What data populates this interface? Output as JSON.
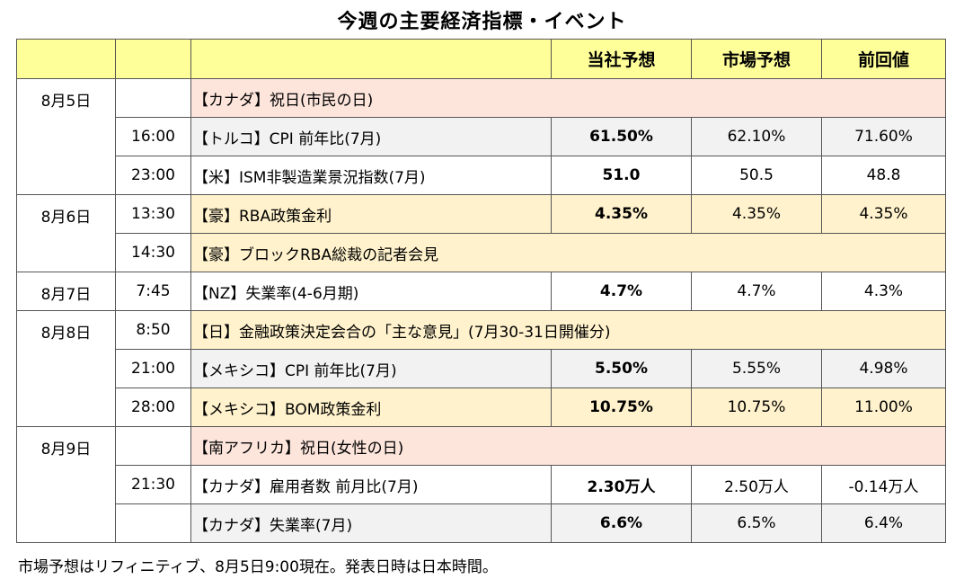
{
  "title": "今週の主要経済指標・イベント",
  "headers": [
    "",
    "",
    "",
    "当社予想",
    "市場予想",
    "前回値"
  ],
  "groups": [
    {
      "date": "8月5日",
      "rows": [
        {
          "time": "",
          "event": "【カナダ】祝日(市民の日)",
          "own": "",
          "market": "",
          "prev": "",
          "span": true,
          "color": "pink"
        },
        {
          "time": "16:00",
          "event": "【トルコ】CPI 前年比(7月)",
          "own": "61.50%",
          "market": "62.10%",
          "prev": "71.60%",
          "span": false,
          "color": "gray"
        },
        {
          "time": "23:00",
          "event": "【米】ISM非製造業景況指数(7月)",
          "own": "51.0",
          "market": "50.5",
          "prev": "48.8",
          "span": false,
          "color": "white"
        }
      ]
    },
    {
      "date": "8月6日",
      "rows": [
        {
          "time": "13:30",
          "event": "【豪】RBA政策金利",
          "own": "4.35%",
          "market": "4.35%",
          "prev": "4.35%",
          "span": false,
          "color": "yellow"
        },
        {
          "time": "14:30",
          "event": "【豪】ブロックRBA総裁の記者会見",
          "own": "",
          "market": "",
          "prev": "",
          "span": true,
          "color": "yellow"
        }
      ]
    },
    {
      "date": "8月7日",
      "rows": [
        {
          "time": "7:45",
          "event": "【NZ】失業率(4-6月期)",
          "own": "4.7%",
          "market": "4.7%",
          "prev": "4.3%",
          "span": false,
          "color": "white"
        }
      ]
    },
    {
      "date": "8月8日",
      "rows": [
        {
          "time": "8:50",
          "event": "【日】金融政策決定会合の「主な意見」(7月30-31日開催分)",
          "own": "",
          "market": "",
          "prev": "",
          "span": true,
          "color": "yellow"
        },
        {
          "time": "21:00",
          "event": "【メキシコ】CPI 前年比(7月)",
          "own": "5.50%",
          "market": "5.55%",
          "prev": "4.98%",
          "span": false,
          "color": "gray"
        },
        {
          "time": "28:00",
          "event": "【メキシコ】BOM政策金利",
          "own": "10.75%",
          "market": "10.75%",
          "prev": "11.00%",
          "span": false,
          "color": "yellow"
        }
      ]
    },
    {
      "date": "8月9日",
      "rows": [
        {
          "time": "",
          "event": "【南アフリカ】祝日(女性の日)",
          "own": "",
          "market": "",
          "prev": "",
          "span": true,
          "color": "pink"
        },
        {
          "time": "21:30",
          "event": "【カナダ】雇用者数 前月比(7月)",
          "own": "2.30万人",
          "market": "2.50万人",
          "prev": "-0.14万人",
          "span": false,
          "color": "white"
        },
        {
          "time": "",
          "event": "【カナダ】失業率(7月)",
          "own": "6.6%",
          "market": "6.5%",
          "prev": "6.4%",
          "span": false,
          "color": "gray"
        }
      ]
    }
  ],
  "note": "市場予想はリフィニティブ、8月5日9:00現在。発表日時は日本時間。"
}
